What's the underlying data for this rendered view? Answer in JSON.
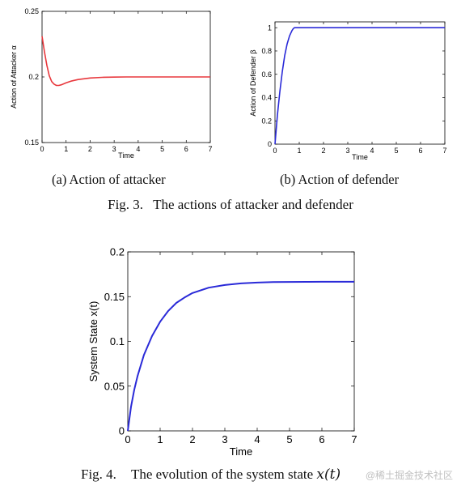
{
  "captions": {
    "sub_a": "(a) Action of attacker",
    "sub_b": "(b) Action of defender",
    "fig3_num": "Fig. 3.",
    "fig3_text": "The actions of attacker and defender",
    "fig4_num": "Fig. 4.",
    "fig4_text": "The evolution of the system state",
    "fig4_math": "x(t)"
  },
  "watermark": "@稀土掘金技术社区",
  "chart_data": [
    {
      "id": "attacker",
      "type": "line",
      "xlabel": "Time",
      "ylabel": "Action of Attacker α",
      "xlim": [
        0,
        7
      ],
      "ylim": [
        0.15,
        0.25
      ],
      "xticks": [
        0,
        1,
        2,
        3,
        4,
        5,
        6,
        7
      ],
      "yticks": [
        0.15,
        0.2,
        0.25
      ],
      "ytick_labels": [
        "0.15",
        "0.2",
        "0.25"
      ],
      "grid": false,
      "series": [
        {
          "color": "#e8383d",
          "x": [
            0,
            0.1,
            0.2,
            0.3,
            0.4,
            0.5,
            0.6,
            0.7,
            0.8,
            1.0,
            1.2,
            1.5,
            2.0,
            2.5,
            3.0,
            3.5,
            4.0,
            5.0,
            6.0,
            7.0
          ],
          "y": [
            0.231,
            0.219,
            0.209,
            0.201,
            0.1965,
            0.1945,
            0.1935,
            0.1935,
            0.194,
            0.1955,
            0.1968,
            0.198,
            0.1992,
            0.1997,
            0.1999,
            0.2,
            0.2,
            0.2,
            0.2,
            0.2
          ]
        }
      ]
    },
    {
      "id": "defender",
      "type": "line",
      "xlabel": "Time",
      "ylabel": "Action of Defender β",
      "xlim": [
        0,
        7
      ],
      "ylim": [
        0,
        1.05
      ],
      "xticks": [
        0,
        1,
        2,
        3,
        4,
        5,
        6,
        7
      ],
      "yticks": [
        0,
        0.2,
        0.4,
        0.6,
        0.8,
        1
      ],
      "ytick_labels": [
        "0",
        "0.2",
        "0.4",
        "0.6",
        "0.8",
        "1"
      ],
      "grid": false,
      "series": [
        {
          "color": "#2a2ad8",
          "x": [
            0,
            0.1,
            0.2,
            0.3,
            0.4,
            0.5,
            0.6,
            0.7,
            0.75,
            0.8,
            0.85,
            0.9,
            1.0,
            2.0,
            3.0,
            4.0,
            5.0,
            6.0,
            7.0
          ],
          "y": [
            0,
            0.25,
            0.45,
            0.62,
            0.76,
            0.86,
            0.93,
            0.975,
            0.99,
            1.0,
            1.0,
            1.0,
            1.0,
            1.0,
            1.0,
            1.0,
            1.0,
            1.0,
            1.0
          ]
        }
      ]
    },
    {
      "id": "state",
      "type": "line",
      "xlabel": "Time",
      "ylabel": "System State x(t)",
      "xlim": [
        0,
        7
      ],
      "ylim": [
        0,
        0.2
      ],
      "xticks": [
        0,
        1,
        2,
        3,
        4,
        5,
        6,
        7
      ],
      "yticks": [
        0,
        0.05,
        0.1,
        0.15,
        0.2
      ],
      "ytick_labels": [
        "0",
        "0.05",
        "0.1",
        "0.15",
        "0.2"
      ],
      "grid": false,
      "series": [
        {
          "color": "#2a2ad8",
          "x": [
            0,
            0.1,
            0.2,
            0.3,
            0.5,
            0.75,
            1.0,
            1.25,
            1.5,
            1.75,
            2.0,
            2.5,
            3.0,
            3.5,
            4.0,
            4.5,
            5.0,
            5.5,
            6.0,
            6.5,
            7.0
          ],
          "y": [
            0,
            0.027,
            0.046,
            0.061,
            0.085,
            0.106,
            0.122,
            0.134,
            0.143,
            0.149,
            0.154,
            0.16,
            0.163,
            0.1648,
            0.1657,
            0.1662,
            0.1664,
            0.1665,
            0.1666,
            0.1666,
            0.1666
          ]
        }
      ]
    }
  ]
}
